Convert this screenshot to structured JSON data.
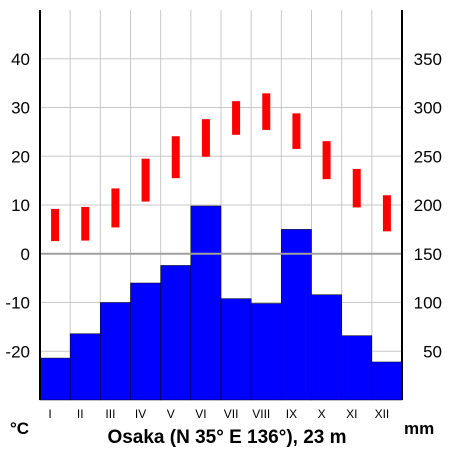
{
  "chart_data": {
    "type": "bar",
    "title": "Osaka (N 35° E 136°), 23 m",
    "left_unit": "°C",
    "right_unit": "mm",
    "categories": [
      "I",
      "II",
      "III",
      "IV",
      "V",
      "VI",
      "VII",
      "VIII",
      "IX",
      "X",
      "XI",
      "XII"
    ],
    "temperature_axis": {
      "range": [
        -30,
        50
      ],
      "ticks": [
        -20,
        -10,
        0,
        10,
        20,
        30,
        40
      ]
    },
    "precipitation_axis": {
      "range": [
        0,
        400
      ],
      "ticks": [
        50,
        100,
        150,
        200,
        250,
        300,
        350
      ]
    },
    "grid": true,
    "series": [
      {
        "kind": "precipitation-bars",
        "color": "#0000ff",
        "values": [
          43,
          68,
          100,
          120,
          138,
          199,
          104,
          99,
          175,
          108,
          66,
          39
        ]
      },
      {
        "kind": "temperature-range",
        "color": "#ff0000",
        "low": [
          2.6,
          2.7,
          5.4,
          10.7,
          15.5,
          19.9,
          24.4,
          25.4,
          21.5,
          15.3,
          9.5,
          4.6
        ],
        "high": [
          9.2,
          9.6,
          13.4,
          19.5,
          24.1,
          27.6,
          31.3,
          32.9,
          28.8,
          23.1,
          17.4,
          12.0
        ]
      }
    ]
  }
}
